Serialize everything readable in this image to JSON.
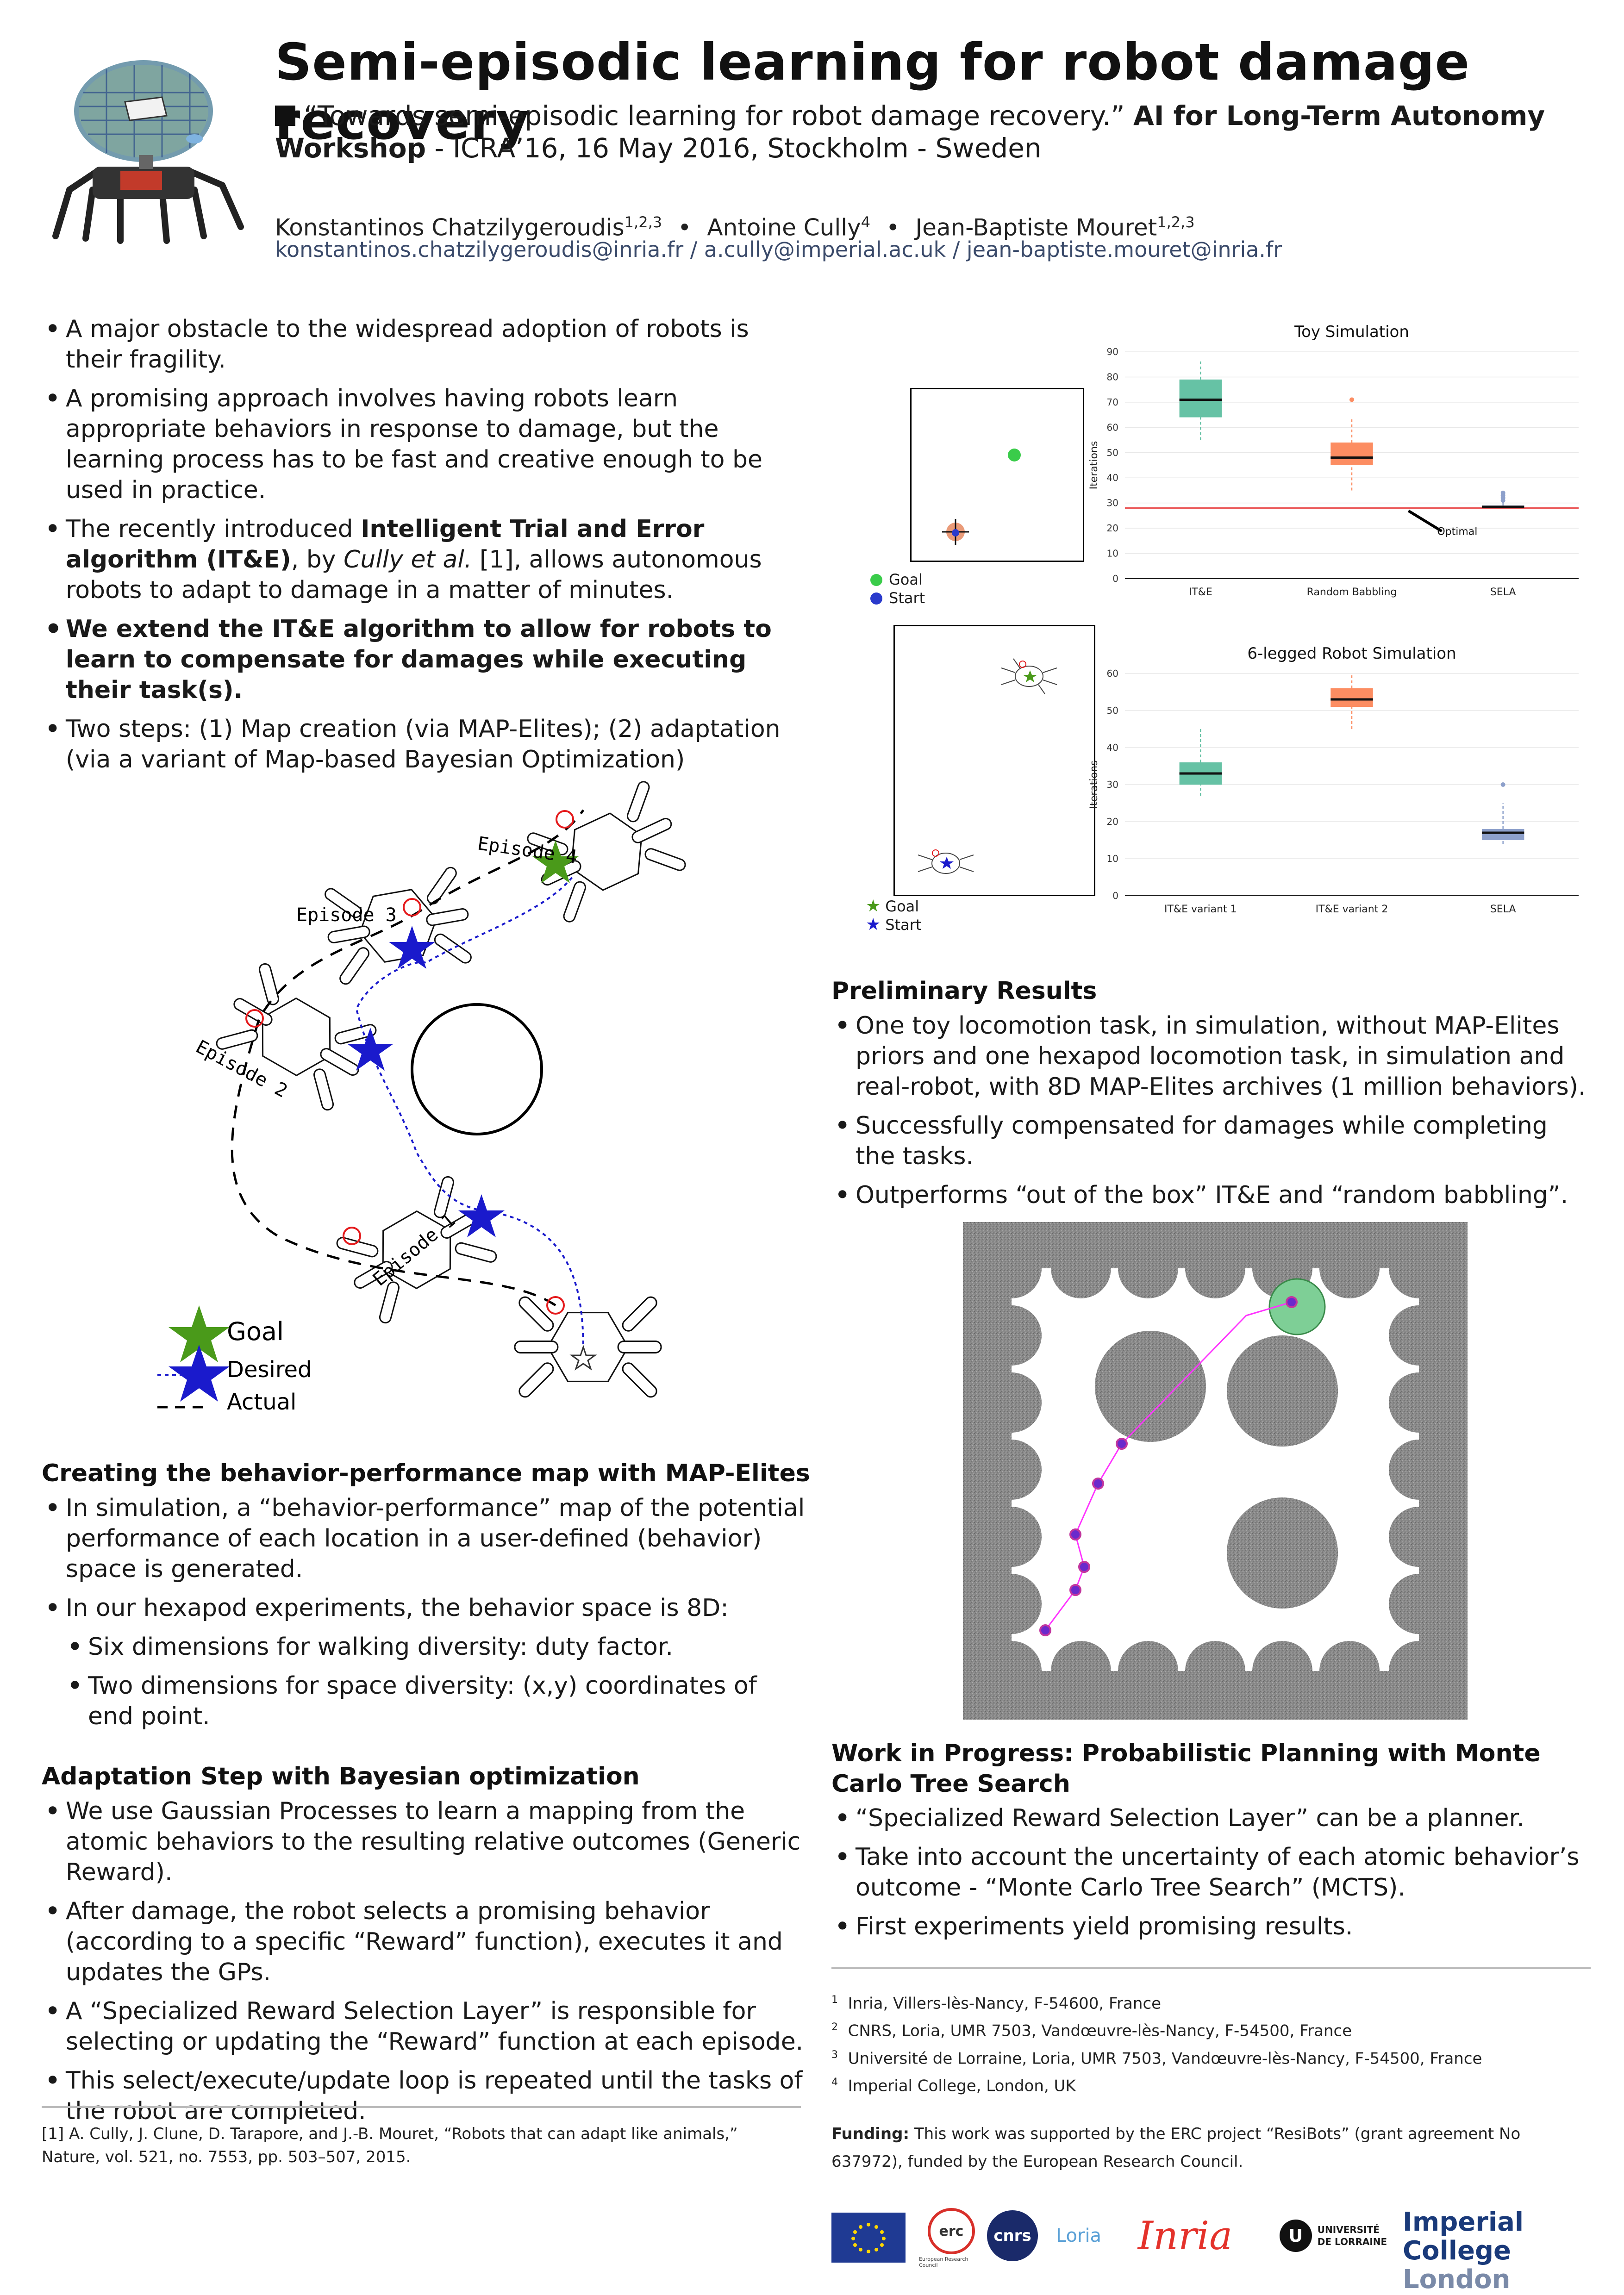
{
  "header": {
    "title": "Semi-episodic learning for robot damage recovery",
    "citation_quote": "“Towards semi-episodic learning for robot damage recovery.”",
    "citation_venue_bold": "AI for Long-Term Autonomy Workshop",
    "citation_rest": " - ICRA’16, 16 May 2016, Stockholm - Sweden",
    "authors": [
      {
        "name": "Konstantinos Chatzilygeroudis",
        "sup": "1,2,3"
      },
      {
        "name": "Antoine Cully",
        "sup": "4"
      },
      {
        "name": "Jean-Baptiste Mouret",
        "sup": "1,2,3"
      }
    ],
    "author_separator": "•",
    "emails": "konstantinos.chatzilygeroudis@inria.fr / a.cully@imperial.ac.uk / jean-baptiste.mouret@inria.fr"
  },
  "intro": {
    "b1": "A major obstacle to the widespread adoption of robots is their fragility.",
    "b2": "A promising approach involves having robots learn appropriate behaviors in response to damage, but the learning process has to be fast and creative enough to be used in practice.",
    "b3_pre": "The recently introduced ",
    "b3_bold": "Intelligent Trial and Error algorithm (IT&E)",
    "b3_mid": ", by ",
    "b3_italic": "Cully et al.",
    "b3_post": " [1], allows autonomous robots to adapt to damage in a matter of minutes.",
    "b4": "We extend the IT&E algorithm to allow for robots to learn to compensate for damages while executing their task(s).",
    "b5": "Two steps: (1) Map creation (via MAP-Elites); (2) adaptation (via a variant of Map-based Bayesian Optimization)"
  },
  "episode_diagram": {
    "episodes": [
      "Episode 1",
      "Episode 2",
      "Episode 3",
      "Episode 4"
    ],
    "legend": {
      "goal": "Goal",
      "desired": "Desired",
      "actual": "Actual"
    }
  },
  "map_elites": {
    "heading": "Creating the behavior-performance map with MAP-Elites",
    "b1": "In simulation, a “behavior-performance” map of the potential performance of each location in a user-defined (behavior) space is generated.",
    "b2": "In our hexapod experiments, the behavior space is 8D:",
    "s1": "Six dimensions for walking diversity: duty factor.",
    "s2": "Two dimensions for space diversity: (x,y) coordinates of end point."
  },
  "adaptation": {
    "heading": "Adaptation Step with Bayesian optimization",
    "b1": "We use Gaussian Processes to learn a mapping from the atomic behaviors to the resulting relative outcomes (Generic Reward).",
    "b2": "After damage, the robot selects a promising behavior (according to a specific “Reward” function), executes it and updates the GPs.",
    "b3": "A “Specialized Reward Selection Layer” is responsible for selecting or updating the “Reward” function at each episode.",
    "b4": "This select/execute/update loop is repeated until the tasks of the robot are completed."
  },
  "reference": "[1] A. Cully, J. Clune, D. Tarapore, and J.-B. Mouret, “Robots that can adapt like animals,” Nature, vol. 521, no. 7553, pp. 503–507, 2015.",
  "sim_panels": {
    "top_legend": {
      "goal": "Goal",
      "start": "Start"
    },
    "bottom_legend": {
      "goal": "Goal",
      "start": "Start"
    }
  },
  "chart_data": [
    {
      "type": "box",
      "title": "Toy Simulation",
      "ylabel": "Iterations",
      "ylim": [
        0,
        90
      ],
      "yticks": [
        0,
        10,
        20,
        30,
        40,
        50,
        60,
        70,
        80,
        90
      ],
      "categories": [
        "IT&E",
        "Random Babbling",
        "SELA"
      ],
      "boxes": [
        {
          "whisker_low": 55,
          "q1": 64,
          "median": 71,
          "q3": 79,
          "whisker_high": 87,
          "color": "#66c2a5"
        },
        {
          "whisker_low": 35,
          "q1": 45,
          "median": 48,
          "q3": 54,
          "whisker_high": 64,
          "outliers": [
            71
          ],
          "color": "#fc8d62"
        },
        {
          "whisker_low": 28,
          "q1": 28,
          "median": 28.5,
          "q3": 29,
          "whisker_high": 30,
          "outliers": [
            31,
            32,
            33,
            34
          ],
          "color": "#8da0cb"
        }
      ],
      "reference_line": {
        "value": 28,
        "color": "#e41a1c"
      },
      "annotation": "Optimal"
    },
    {
      "type": "box",
      "title": "6-legged Robot Simulation",
      "ylabel": "Iterations",
      "ylim": [
        0,
        60
      ],
      "yticks": [
        0,
        10,
        20,
        30,
        40,
        50,
        60
      ],
      "categories": [
        "IT&E variant 1",
        "IT&E variant 2",
        "SELA"
      ],
      "boxes": [
        {
          "whisker_low": 27,
          "q1": 30,
          "median": 33,
          "q3": 36,
          "whisker_high": 45,
          "color": "#66c2a5"
        },
        {
          "whisker_low": 45,
          "q1": 51,
          "median": 53,
          "q3": 56,
          "whisker_high": 60,
          "color": "#fc8d62"
        },
        {
          "whisker_low": 14,
          "q1": 15,
          "median": 17,
          "q3": 18,
          "whisker_high": 25,
          "outliers": [
            30
          ],
          "color": "#8da0cb"
        }
      ]
    }
  ],
  "preliminary": {
    "heading": "Preliminary Results",
    "b1": "One toy locomotion task, in simulation, without MAP-Elites priors and one hexapod locomotion task, in simulation and real-robot, with 8D MAP-Elites archives (1 million behaviors).",
    "b2": "Successfully compensated for damages while completing the tasks.",
    "b3": "Outperforms “out of the box” IT&E and “random babbling”."
  },
  "wip": {
    "heading": "Work in Progress: Probabilistic Planning with Monte Carlo Tree Search",
    "b1": "“Specialized Reward Selection Layer” can be a planner.",
    "b2": "Take into account the uncertainty of each atomic behavior’s outcome - “Monte Carlo Tree Search” (MCTS).",
    "b3": "First experiments yield promising results."
  },
  "affiliations": [
    {
      "sup": "1",
      "text": "Inria, Villers-lès-Nancy, F-54600, France"
    },
    {
      "sup": "2",
      "text": "CNRS, Loria, UMR 7503, Vandœuvre-lès-Nancy, F-54500, France"
    },
    {
      "sup": "3",
      "text": "Université de Lorraine, Loria, UMR 7503, Vandœuvre-lès-Nancy, F-54500, France"
    },
    {
      "sup": "4",
      "text": "Imperial College, London, UK"
    }
  ],
  "funding": {
    "label": "Funding:",
    "text": "This work was supported by the ERC project “ResiBots” (grant agreement No 637972), funded by the European Research Council."
  },
  "logos": {
    "erc": "erc",
    "erc_small": "European Research Council",
    "cnrs": "cnrs",
    "loria": "Loria",
    "inria": "Inria",
    "ul1": "UNIVERSITÉ",
    "ul2": "DE LORRAINE",
    "imperial1": "Imperial College",
    "imperial2": "London"
  },
  "colors": {
    "teal": "#66c2a5",
    "orange": "#fc8d62",
    "lavender": "#8da0cb",
    "goal_green": "#4a9a1a",
    "desired_blue": "#1a1acc",
    "marker_red": "#e41a1c"
  }
}
